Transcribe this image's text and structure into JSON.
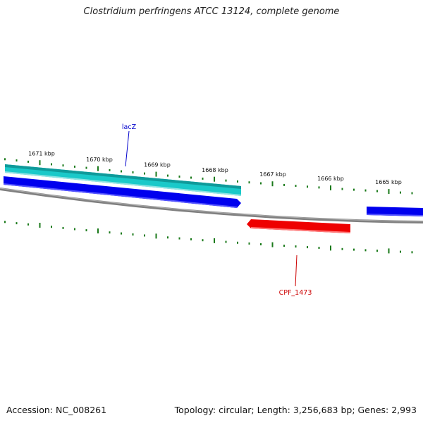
{
  "title": "Clostridium perfringens ATCC 13124, complete genome",
  "footer": {
    "accession": "Accession: NC_008261",
    "summary": "Topology: circular; Length: 3,256,683 bp; Genes: 2,993"
  },
  "scale_labels": [
    "1671 kbp",
    "1670 kbp",
    "1669 kbp",
    "1668 kbp",
    "1667 kbp",
    "1666 kbp",
    "1665 kbp"
  ],
  "genes": [
    {
      "label": "lacZ",
      "color": "#0000cc"
    },
    {
      "label": "CPF_1473",
      "color": "#cc0000"
    }
  ],
  "colors": {
    "tick": "#1b7a1b",
    "backbone": "#808080",
    "cyan_feature": "#1ac9c9",
    "blue_feature": "#0000ee",
    "red_feature": "#ee0000"
  }
}
